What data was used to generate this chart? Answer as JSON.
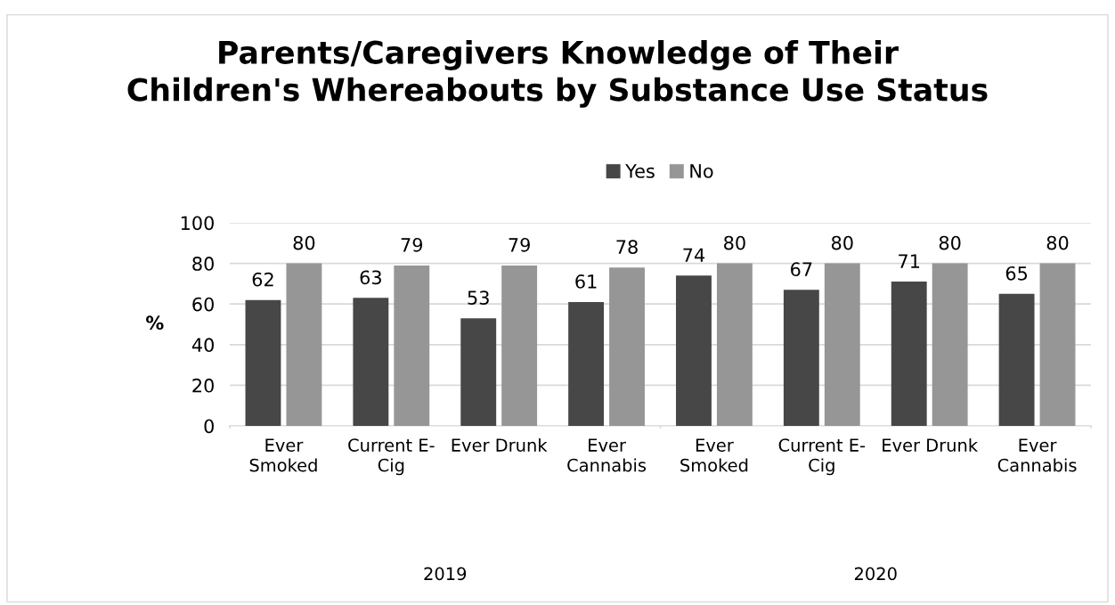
{
  "chart_data": {
    "type": "bar",
    "title": "Parents/Caregivers Knowledge of Their\nChildren's Whereabouts by Substance Use Status",
    "ylabel": "%",
    "categories": [
      "Ever\nSmoked",
      "Current E-\nCig",
      "Ever Drunk",
      "Ever\nCannabis",
      "Ever\nSmoked",
      "Current E-\nCig",
      "Ever Drunk",
      "Ever\nCannabis"
    ],
    "series": [
      {
        "name": "Yes",
        "color": "#474747",
        "values": [
          62,
          63,
          53,
          61,
          74,
          67,
          71,
          65
        ]
      },
      {
        "name": "No",
        "color": "#969696",
        "values": [
          80,
          79,
          79,
          78,
          80,
          80,
          80,
          80
        ]
      }
    ],
    "annotations": [
      "2019",
      "2020"
    ],
    "ylim": [
      0,
      100
    ],
    "yticks": [
      0,
      20,
      40,
      60,
      80,
      100
    ],
    "grid": "y",
    "legend": "top",
    "data_labels": true
  }
}
